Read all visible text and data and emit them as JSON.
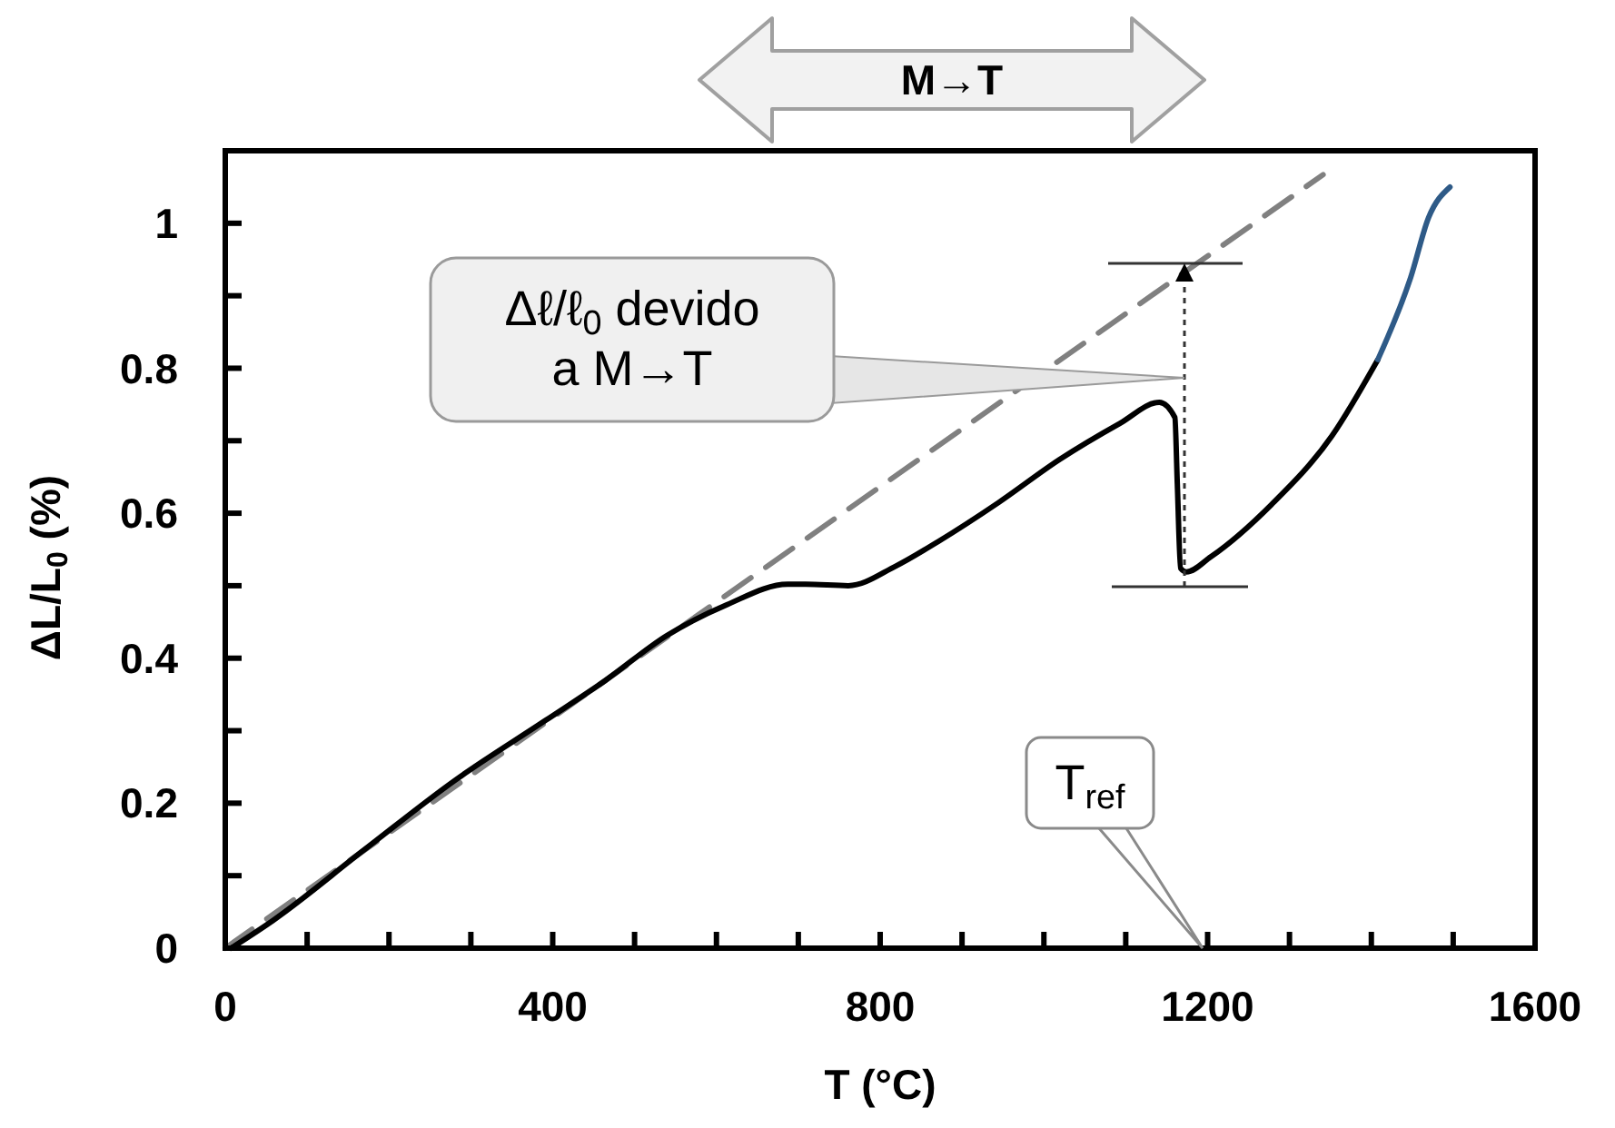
{
  "chart_data": {
    "type": "line",
    "xlabel": "T (°C)",
    "ylabel": "ΔL/L$_{0}$ (%)",
    "xlim": [
      0,
      1600
    ],
    "ylim": [
      0,
      1.1
    ],
    "xticks": [
      0,
      {
        "value": 100,
        "label": null
      },
      {
        "value": 200,
        "label": null
      },
      {
        "value": 300,
        "label": null
      },
      400,
      {
        "value": 500,
        "label": null
      },
      {
        "value": 600,
        "label": null
      },
      {
        "value": 700,
        "label": null
      },
      800,
      {
        "value": 900,
        "label": null
      },
      {
        "value": 1000,
        "label": null
      },
      {
        "value": 1100,
        "label": null
      },
      1200,
      {
        "value": 1300,
        "label": null
      },
      {
        "value": 1400,
        "label": null
      },
      {
        "value": 1500,
        "label": null
      },
      1600
    ],
    "yticks": [
      0,
      {
        "value": 0.1,
        "label": null
      },
      0.2,
      {
        "value": 0.3,
        "label": null
      },
      0.4,
      {
        "value": 0.5,
        "label": null
      },
      0.6,
      {
        "value": 0.7,
        "label": null
      },
      0.8,
      {
        "value": 0.9,
        "label": null
      },
      1
    ],
    "grid": false,
    "marker": "none",
    "series": [
      {
        "color": "#808080",
        "line_style": "dashed",
        "x": [
          0,
          1341
        ],
        "values": [
          0,
          1.067
        ]
      },
      {
        "color": "#000000",
        "line_style": "solid",
        "x": [
          7,
          58,
          169,
          280,
          391,
          464,
          539,
          613,
          687,
          709,
          761,
          819,
          871,
          945,
          1019,
          1093,
          1141,
          1160,
          1163,
          1167,
          1174,
          1204,
          1278,
          1352,
          1408
        ],
        "values": [
          0,
          0.038,
          0.135,
          0.231,
          0.314,
          0.369,
          0.431,
          0.474,
          0.502,
          0.502,
          0.5,
          0.527,
          0.561,
          0.615,
          0.674,
          0.724,
          0.753,
          0.732,
          0.64,
          0.524,
          0.519,
          0.54,
          0.612,
          0.707,
          0.812
        ]
      },
      {
        "color": "#2e5a87",
        "line_style": "solid",
        "x": [
          1408,
          1448,
          1470,
          1496
        ],
        "values": [
          0.812,
          0.925,
          1.008,
          1.05
        ]
      }
    ],
    "annotations": [
      "M→T",
      "Δℓ/ℓ$_{0}$ devido\na M→T",
      "T$_{ref}$"
    ]
  }
}
